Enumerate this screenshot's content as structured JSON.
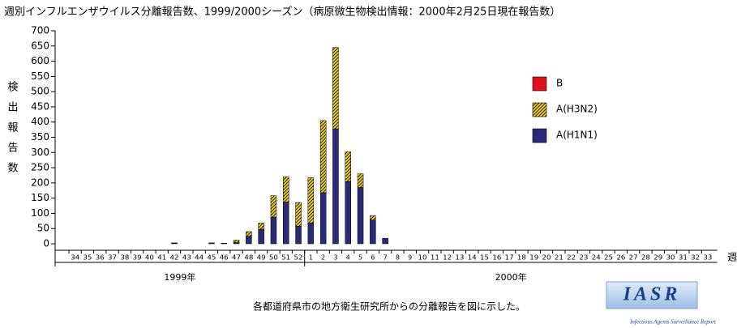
{
  "chart_data": {
    "type": "stacked_bar",
    "title": "週別インフルエンザウイルス分離報告数、1999/2000シーズン（病原微生物検出情報：2000年2月25日現在報告数）",
    "y_label": "検出報告数",
    "x_label": "週",
    "categories": [
      "34",
      "35",
      "36",
      "37",
      "38",
      "39",
      "40",
      "41",
      "42",
      "43",
      "44",
      "45",
      "46",
      "47",
      "48",
      "49",
      "50",
      "51",
      "52",
      "1",
      "2",
      "3",
      "4",
      "5",
      "6",
      "7",
      "8",
      "9",
      "10",
      "11",
      "12",
      "13",
      "14",
      "15",
      "16",
      "17",
      "18",
      "19",
      "20",
      "21",
      "22",
      "23",
      "24",
      "25",
      "26",
      "27",
      "28",
      "29",
      "30",
      "31",
      "32",
      "33"
    ],
    "year_labels": [
      "1999年",
      "2000年"
    ],
    "series": [
      {
        "name": "B",
        "color": "#e0101c",
        "hatch": false,
        "values": [
          0,
          0,
          0,
          0,
          0,
          0,
          0,
          0,
          0,
          0,
          0,
          0,
          0,
          0,
          0,
          0,
          0,
          0,
          0,
          0,
          0,
          0,
          0,
          0,
          0,
          0,
          0,
          0,
          0,
          0,
          0,
          0,
          0,
          0,
          0,
          0,
          0,
          0,
          0,
          0,
          0,
          0,
          0,
          0,
          0,
          0,
          0,
          0,
          0,
          0,
          0,
          0
        ]
      },
      {
        "name": "A(H3N2)",
        "color": "#f0d020",
        "hatch": true,
        "values": [
          0,
          0,
          0,
          0,
          0,
          0,
          0,
          0,
          1,
          0,
          0,
          0,
          0,
          8,
          15,
          20,
          70,
          83,
          77,
          149,
          237,
          267,
          97,
          45,
          14,
          0,
          0,
          0,
          0,
          0,
          0,
          0,
          0,
          0,
          0,
          0,
          0,
          0,
          0,
          0,
          0,
          0,
          0,
          0,
          0,
          0,
          0,
          0,
          0,
          0,
          0,
          0
        ]
      },
      {
        "name": "A(H1N1)",
        "color": "#2b2a78",
        "hatch": false,
        "values": [
          0,
          0,
          0,
          0,
          0,
          0,
          0,
          0,
          2,
          0,
          0,
          3,
          2,
          4,
          25,
          48,
          88,
          137,
          58,
          68,
          168,
          378,
          205,
          185,
          78,
          18,
          0,
          0,
          0,
          0,
          0,
          0,
          0,
          0,
          0,
          0,
          0,
          0,
          0,
          0,
          0,
          0,
          0,
          0,
          0,
          0,
          0,
          0,
          0,
          0,
          0,
          0
        ]
      }
    ],
    "ylim": [
      0,
      700
    ],
    "yticks": [
      0,
      50,
      100,
      150,
      200,
      250,
      300,
      350,
      400,
      450,
      500,
      550,
      600,
      650,
      700
    ],
    "legend": "upper right",
    "caption": "各都道府県市の地方衛生研究所からの分離報告を図に示した。",
    "logo": "IASR",
    "logo_subtitle": "Infectious Agents Surveillance Report"
  }
}
